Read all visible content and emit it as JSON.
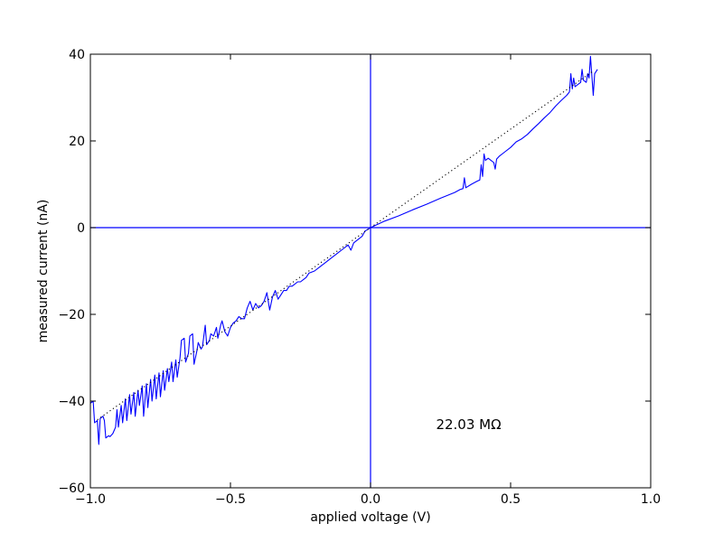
{
  "chart_data": {
    "type": "line",
    "title": "",
    "xlabel": "applied voltage (V)",
    "ylabel": "measured current (nA)",
    "xlim": [
      -1.0,
      1.0
    ],
    "ylim": [
      -60,
      40
    ],
    "x_ticks": [
      -1.0,
      -0.5,
      0.0,
      0.5,
      1.0
    ],
    "x_tick_labels": [
      "−1.0",
      "−0.5",
      "0.0",
      "0.5",
      "1.0"
    ],
    "y_ticks": [
      -60,
      -40,
      -20,
      0,
      20,
      40
    ],
    "y_tick_labels": [
      "−60",
      "−40",
      "−20",
      "0",
      "20",
      "40"
    ],
    "grid": false,
    "annotation": {
      "text": "22.03 MΩ",
      "x": 0.35,
      "y": -46.5
    },
    "reference_lines": [
      {
        "orientation": "vertical",
        "value": 0.0,
        "color": "#0000ff"
      },
      {
        "orientation": "horizontal",
        "value": 0.0,
        "color": "#0000ff"
      }
    ],
    "series": [
      {
        "style": "solid",
        "color": "#0000ff",
        "points": [
          [
            -1.0,
            -40.5
          ],
          [
            -0.99,
            -40.0
          ],
          [
            -0.985,
            -45.0
          ],
          [
            -0.975,
            -44.5
          ],
          [
            -0.97,
            -50.0
          ],
          [
            -0.965,
            -44.0
          ],
          [
            -0.955,
            -43.5
          ],
          [
            -0.95,
            -44.5
          ],
          [
            -0.945,
            -48.5
          ],
          [
            -0.935,
            -48.0
          ],
          [
            -0.93,
            -48.2
          ],
          [
            -0.92,
            -47.5
          ],
          [
            -0.91,
            -46.0
          ],
          [
            -0.905,
            -42.0
          ],
          [
            -0.9,
            -46.0
          ],
          [
            -0.89,
            -41.0
          ],
          [
            -0.885,
            -45.0
          ],
          [
            -0.875,
            -39.5
          ],
          [
            -0.87,
            -44.5
          ],
          [
            -0.86,
            -38.5
          ],
          [
            -0.855,
            -43.0
          ],
          [
            -0.845,
            -38.0
          ],
          [
            -0.84,
            -43.5
          ],
          [
            -0.83,
            -37.5
          ],
          [
            -0.825,
            -41.0
          ],
          [
            -0.815,
            -36.5
          ],
          [
            -0.81,
            -43.5
          ],
          [
            -0.8,
            -36.0
          ],
          [
            -0.795,
            -41.5
          ],
          [
            -0.785,
            -35.0
          ],
          [
            -0.78,
            -40.0
          ],
          [
            -0.77,
            -34.0
          ],
          [
            -0.765,
            -39.5
          ],
          [
            -0.755,
            -33.5
          ],
          [
            -0.75,
            -39.0
          ],
          [
            -0.74,
            -33.0
          ],
          [
            -0.735,
            -37.5
          ],
          [
            -0.725,
            -32.5
          ],
          [
            -0.72,
            -35.5
          ],
          [
            -0.71,
            -31.0
          ],
          [
            -0.705,
            -35.5
          ],
          [
            -0.695,
            -30.5
          ],
          [
            -0.69,
            -34.5
          ],
          [
            -0.68,
            -30.0
          ],
          [
            -0.675,
            -26.0
          ],
          [
            -0.665,
            -25.5
          ],
          [
            -0.66,
            -31.0
          ],
          [
            -0.65,
            -29.0
          ],
          [
            -0.645,
            -25.0
          ],
          [
            -0.635,
            -24.5
          ],
          [
            -0.63,
            -31.5
          ],
          [
            -0.62,
            -28.5
          ],
          [
            -0.615,
            -26.5
          ],
          [
            -0.605,
            -28.0
          ],
          [
            -0.6,
            -27.5
          ],
          [
            -0.59,
            -22.5
          ],
          [
            -0.585,
            -27.0
          ],
          [
            -0.575,
            -26.0
          ],
          [
            -0.57,
            -24.5
          ],
          [
            -0.56,
            -25.0
          ],
          [
            -0.55,
            -23.0
          ],
          [
            -0.545,
            -25.5
          ],
          [
            -0.535,
            -22.5
          ],
          [
            -0.53,
            -21.5
          ],
          [
            -0.52,
            -24.0
          ],
          [
            -0.51,
            -25.0
          ],
          [
            -0.5,
            -23.0
          ],
          [
            -0.49,
            -22.0
          ],
          [
            -0.48,
            -21.5
          ],
          [
            -0.47,
            -20.5
          ],
          [
            -0.46,
            -21.0
          ],
          [
            -0.45,
            -21.0
          ],
          [
            -0.44,
            -18.5
          ],
          [
            -0.43,
            -17.0
          ],
          [
            -0.42,
            -19.0
          ],
          [
            -0.41,
            -17.5
          ],
          [
            -0.4,
            -18.5
          ],
          [
            -0.39,
            -18.0
          ],
          [
            -0.38,
            -17.0
          ],
          [
            -0.37,
            -15.0
          ],
          [
            -0.36,
            -19.0
          ],
          [
            -0.35,
            -16.0
          ],
          [
            -0.34,
            -14.5
          ],
          [
            -0.33,
            -16.5
          ],
          [
            -0.32,
            -15.5
          ],
          [
            -0.31,
            -14.5
          ],
          [
            -0.3,
            -14.5
          ],
          [
            -0.29,
            -13.5
          ],
          [
            -0.28,
            -13.5
          ],
          [
            -0.27,
            -13.0
          ],
          [
            -0.26,
            -12.5
          ],
          [
            -0.25,
            -12.5
          ],
          [
            -0.24,
            -12.0
          ],
          [
            -0.23,
            -11.5
          ],
          [
            -0.22,
            -10.5
          ],
          [
            -0.2,
            -10.0
          ],
          [
            -0.18,
            -9.0
          ],
          [
            -0.16,
            -8.0
          ],
          [
            -0.14,
            -7.0
          ],
          [
            -0.12,
            -6.0
          ],
          [
            -0.1,
            -5.0
          ],
          [
            -0.08,
            -4.0
          ],
          [
            -0.07,
            -5.2
          ],
          [
            -0.06,
            -3.5
          ],
          [
            -0.05,
            -3.0
          ],
          [
            -0.03,
            -2.0
          ],
          [
            -0.02,
            -0.8
          ],
          [
            -0.01,
            -0.4
          ],
          [
            0.0,
            0.0
          ],
          [
            0.05,
            1.5
          ],
          [
            0.1,
            2.7
          ],
          [
            0.15,
            4.1
          ],
          [
            0.2,
            5.4
          ],
          [
            0.25,
            6.8
          ],
          [
            0.3,
            8.1
          ],
          [
            0.32,
            8.8
          ],
          [
            0.33,
            9.0
          ],
          [
            0.335,
            11.5
          ],
          [
            0.34,
            9.2
          ],
          [
            0.36,
            10.0
          ],
          [
            0.38,
            10.7
          ],
          [
            0.39,
            11.0
          ],
          [
            0.395,
            14.5
          ],
          [
            0.4,
            11.8
          ],
          [
            0.405,
            17.0
          ],
          [
            0.41,
            15.5
          ],
          [
            0.42,
            16.0
          ],
          [
            0.43,
            15.5
          ],
          [
            0.44,
            15.0
          ],
          [
            0.445,
            13.5
          ],
          [
            0.45,
            15.8
          ],
          [
            0.46,
            16.5
          ],
          [
            0.48,
            17.5
          ],
          [
            0.5,
            18.5
          ],
          [
            0.52,
            19.8
          ],
          [
            0.54,
            20.5
          ],
          [
            0.56,
            21.5
          ],
          [
            0.58,
            22.8
          ],
          [
            0.6,
            24.0
          ],
          [
            0.62,
            25.3
          ],
          [
            0.64,
            26.5
          ],
          [
            0.66,
            28.0
          ],
          [
            0.68,
            29.3
          ],
          [
            0.7,
            30.5
          ],
          [
            0.71,
            31.3
          ],
          [
            0.715,
            35.5
          ],
          [
            0.72,
            32.0
          ],
          [
            0.725,
            34.5
          ],
          [
            0.73,
            32.5
          ],
          [
            0.74,
            33.0
          ],
          [
            0.75,
            33.5
          ],
          [
            0.755,
            36.5
          ],
          [
            0.76,
            34.0
          ],
          [
            0.77,
            33.5
          ],
          [
            0.775,
            35.5
          ],
          [
            0.78,
            34.5
          ],
          [
            0.785,
            39.5
          ],
          [
            0.79,
            35.0
          ],
          [
            0.795,
            30.5
          ],
          [
            0.8,
            35.5
          ],
          [
            0.81,
            36.5
          ]
        ]
      },
      {
        "style": "dotted",
        "color": "#000000",
        "points": [
          [
            -0.975,
            -44.3
          ],
          [
            0.79,
            35.9
          ]
        ]
      }
    ]
  }
}
